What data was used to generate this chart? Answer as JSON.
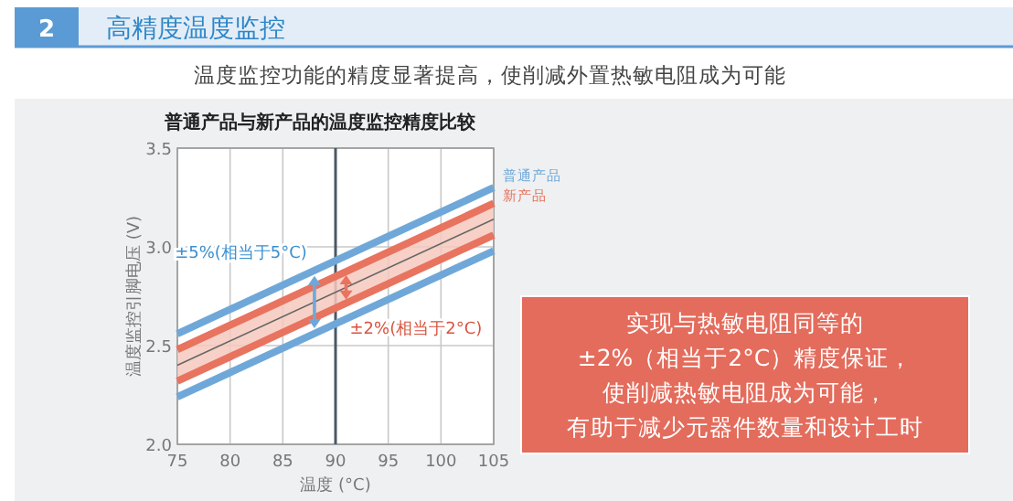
{
  "chart_data": {
    "type": "line",
    "title": "普通产品与新产品的温度监控精度比较",
    "subtitle": "温度监控功能的精度显著提高，使削减外置热敏电阻成为可能",
    "xlabel": "温度 (°C)",
    "ylabel": "温度监控引脚电压 (V)",
    "x": [
      75,
      105
    ],
    "xlim": [
      75,
      105
    ],
    "ylim": [
      2.0,
      3.5
    ],
    "xticks": [
      75,
      80,
      85,
      90,
      95,
      100,
      105
    ],
    "yticks": [
      {
        "value": 2,
        "label": "2.0"
      },
      2.5,
      {
        "value": 3,
        "label": "3.0"
      },
      3.5
    ],
    "grid": true,
    "legend": "right",
    "marker": "none",
    "line_style": "solid",
    "series": [
      {
        "name": "普通产品",
        "color": "#6fa8d8",
        "values": [
          2.56,
          3.3
        ]
      },
      {
        "color": "#6fa8d8",
        "values": [
          2.24,
          2.98
        ]
      },
      {
        "name": "新产品",
        "color": "#e8735f",
        "values": [
          2.48,
          3.22
        ]
      },
      {
        "color": "#e8735f",
        "values": [
          2.32,
          3.06
        ]
      },
      {
        "color": "#666666",
        "values": [
          2.4,
          3.14
        ],
        "lower": [
          2.32,
          3.06
        ],
        "upper": [
          2.48,
          3.22
        ]
      }
    ],
    "ref_lines": [
      {
        "axis": "x",
        "value": 90,
        "color": "#4a5866"
      }
    ],
    "annotations": [
      "2",
      "高精度温度监控",
      {
        "text": "±5%(相当于5°C)",
        "x": 88,
        "y": 2.73
      },
      {
        "text": "±2%(相当于2°C)",
        "x": 91,
        "y": 2.79
      },
      "实现与热敏电阻同等的",
      "±2%（相当于2°C）精度保证，",
      "使削减热敏电阻成为可能，",
      "有助于减少元器件数量和设计工时"
    ]
  }
}
